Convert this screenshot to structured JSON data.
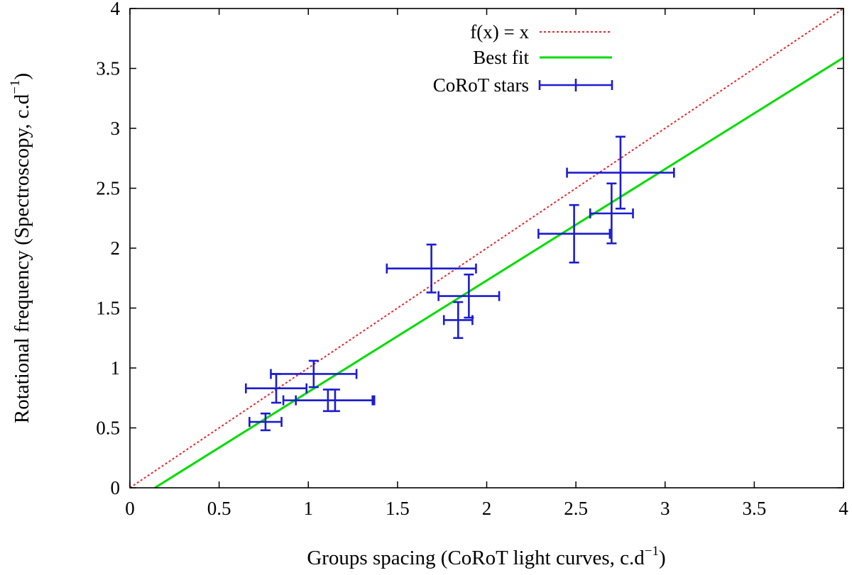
{
  "chart_data": {
    "type": "scatter",
    "title": "",
    "xlabel": "Groups spacing (CoRoT light curves, c.d",
    "xlabel_sup": "−1",
    "xlabel_end": ")",
    "ylabel": "Rotational frequency (Spectroscopy, c.d",
    "ylabel_sup": "−1",
    "ylabel_end": ")",
    "xlim": [
      0,
      4
    ],
    "ylim": [
      0,
      4
    ],
    "xticks": [
      0,
      0.5,
      1,
      1.5,
      2,
      2.5,
      3,
      3.5,
      4
    ],
    "yticks": [
      0,
      0.5,
      1,
      1.5,
      2,
      2.5,
      3,
      3.5,
      4
    ],
    "xtick_labels": [
      "0",
      "0.5",
      "1",
      "1.5",
      "2",
      "2.5",
      "3",
      "3.5",
      "4"
    ],
    "ytick_labels": [
      "0",
      "0.5",
      "1",
      "1.5",
      "2",
      "2.5",
      "3",
      "3.5",
      "4"
    ],
    "grid": false,
    "legend_position": "top-center",
    "colors": {
      "identity": "#e8262a",
      "best_fit": "#00dd00",
      "stars": "#1c1ccf"
    },
    "lines": [
      {
        "name": "f(x) = x",
        "style": "dotted",
        "slope": 1,
        "intercept": 0
      },
      {
        "name": "Best fit",
        "style": "solid",
        "slope": 0.93,
        "intercept": -0.13
      }
    ],
    "series": [
      {
        "name": "CoRoT stars",
        "style": "errorbars",
        "points": [
          {
            "x": 0.76,
            "y": 0.55,
            "xerr": 0.09,
            "yerr": 0.07
          },
          {
            "x": 0.82,
            "y": 0.83,
            "xerr": 0.17,
            "yerr": 0.12
          },
          {
            "x": 1.03,
            "y": 0.95,
            "xerr": 0.24,
            "yerr": 0.11
          },
          {
            "x": 1.11,
            "y": 0.73,
            "xerr": 0.25,
            "yerr": 0.09
          },
          {
            "x": 1.15,
            "y": 0.73,
            "xerr": 0.22,
            "yerr": 0.09
          },
          {
            "x": 1.69,
            "y": 1.83,
            "xerr": 0.25,
            "yerr": 0.2
          },
          {
            "x": 1.84,
            "y": 1.4,
            "xerr": 0.08,
            "yerr": 0.15
          },
          {
            "x": 1.9,
            "y": 1.6,
            "xerr": 0.17,
            "yerr": 0.18
          },
          {
            "x": 2.49,
            "y": 2.12,
            "xerr": 0.2,
            "yerr": 0.24
          },
          {
            "x": 2.7,
            "y": 2.29,
            "xerr": 0.12,
            "yerr": 0.25
          },
          {
            "x": 2.75,
            "y": 2.63,
            "xerr": 0.3,
            "yerr": 0.3
          }
        ]
      }
    ]
  }
}
